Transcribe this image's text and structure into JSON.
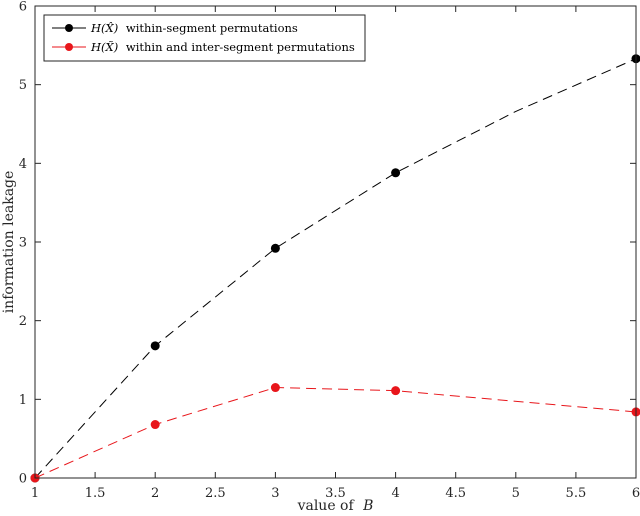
{
  "chart_data": {
    "type": "line",
    "title": "",
    "xlabel_text": "value of",
    "xlabel_var": "B",
    "ylabel": "information leakage",
    "xlim": [
      1,
      6
    ],
    "ylim": [
      0,
      6
    ],
    "xticks": [
      1,
      1.5,
      2,
      2.5,
      3,
      3.5,
      4,
      4.5,
      5,
      5.5,
      6
    ],
    "xtick_labels": [
      "1",
      "1.5",
      "2",
      "2.5",
      "3",
      "3.5",
      "4",
      "4.5",
      "5",
      "5.5",
      "6"
    ],
    "yticks": [
      0,
      1,
      2,
      3,
      4,
      5,
      6
    ],
    "ytick_labels": [
      "0",
      "1",
      "2",
      "3",
      "4",
      "5",
      "6"
    ],
    "grid": false,
    "legend_position": "top-left",
    "x": [
      1,
      2,
      3,
      4,
      6
    ],
    "series": [
      {
        "name_math": "H(X̂)",
        "name_text": "within-segment permutations",
        "color": "#000000",
        "marker_x": [
          1,
          2,
          3,
          4,
          6
        ],
        "marker_y": [
          0,
          1.68,
          2.92,
          3.88,
          5.33
        ],
        "curve_x": [
          1,
          2,
          3,
          4,
          5,
          6
        ],
        "curve_y": [
          0,
          1.68,
          2.92,
          3.88,
          4.66,
          5.33
        ]
      },
      {
        "name_math": "H(X̃)",
        "name_text": "within and inter-segment permutations",
        "color": "#e8161b",
        "marker_x": [
          1,
          2,
          3,
          4,
          6
        ],
        "marker_y": [
          0,
          0.68,
          1.15,
          1.11,
          0.84
        ],
        "curve_x": [
          1,
          2,
          3,
          4,
          6
        ],
        "curve_y": [
          0,
          0.68,
          1.15,
          1.11,
          0.84
        ]
      }
    ]
  }
}
